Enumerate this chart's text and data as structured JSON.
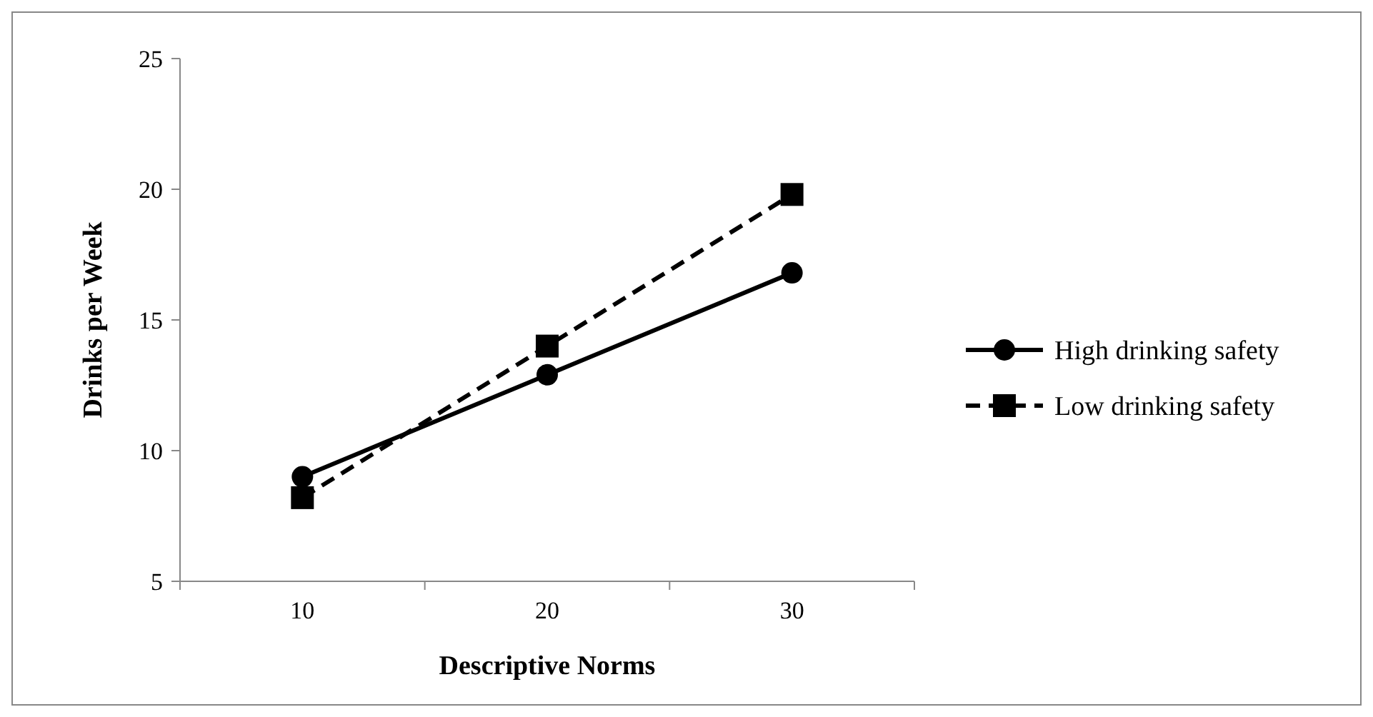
{
  "chart_data": {
    "type": "line",
    "xlabel": "Descriptive Norms",
    "ylabel": "Drinks per Week",
    "categories": [
      "10",
      "20",
      "30"
    ],
    "series": [
      {
        "name": "High drinking safety",
        "color": "#000000",
        "values": [
          9.0,
          12.9,
          16.8
        ],
        "marker": "circle",
        "line_style": "solid"
      },
      {
        "name": "Low drinking safety",
        "color": "#000000",
        "values": [
          8.2,
          14.0,
          19.8
        ],
        "marker": "square",
        "line_style": "dashed"
      }
    ],
    "ylim": [
      5,
      25
    ],
    "yticks": [
      5,
      10,
      15,
      20,
      25
    ],
    "grid": false,
    "legend": "right"
  }
}
